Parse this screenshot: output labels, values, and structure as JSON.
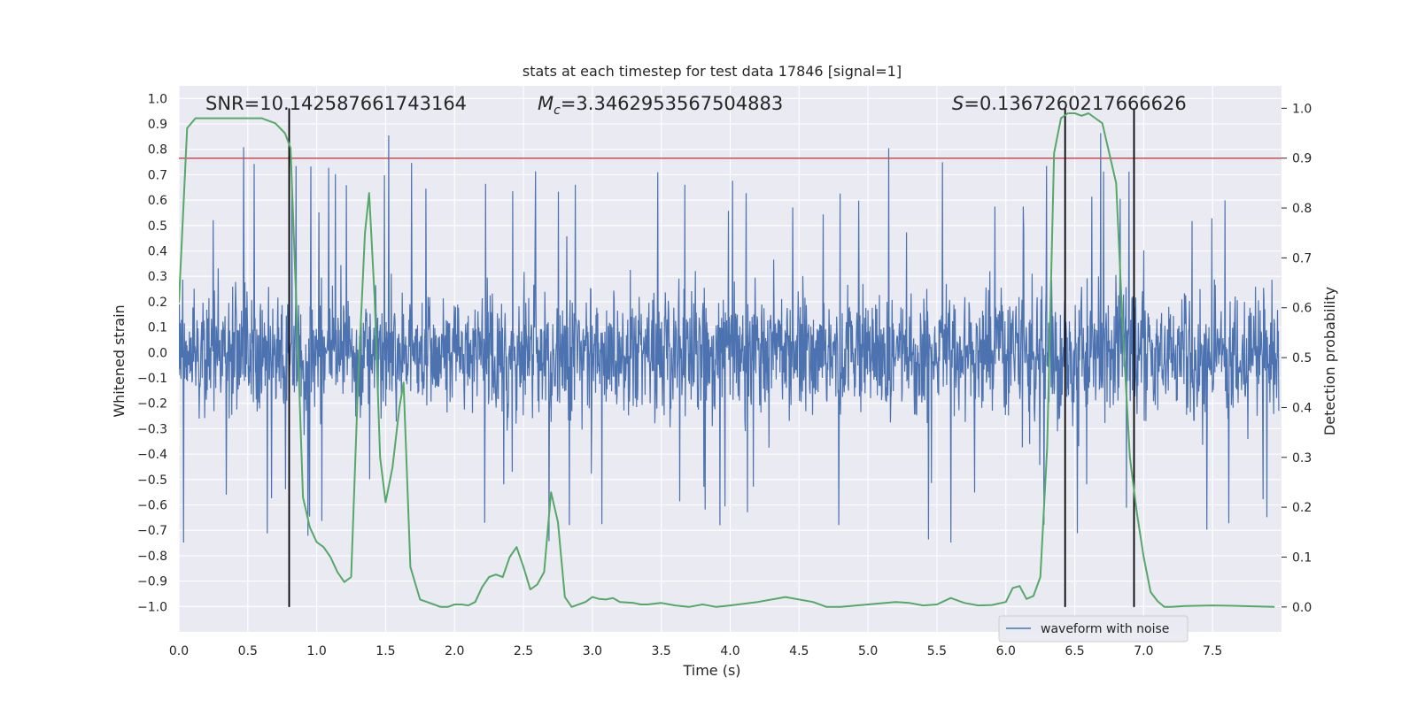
{
  "chart_data": {
    "type": "line",
    "title": "stats at each timestep for test data 17846 [signal=1]",
    "xlabel": "Time (s)",
    "ylabel_left": "Whitened strain",
    "ylabel_right": "Detection probability",
    "xlim": [
      0.0,
      8.0
    ],
    "ylim_left": [
      -1.1,
      1.05
    ],
    "ylim_right": [
      -0.05,
      1.045
    ],
    "x_ticks": [
      "0.0",
      "0.5",
      "1.0",
      "1.5",
      "2.0",
      "2.5",
      "3.0",
      "3.5",
      "4.0",
      "4.5",
      "5.0",
      "5.5",
      "6.0",
      "6.5",
      "7.0",
      "7.5"
    ],
    "y_ticks_left": [
      "1.0",
      "0.9",
      "0.8",
      "0.7",
      "0.6",
      "0.5",
      "0.4",
      "0.3",
      "0.2",
      "0.1",
      "0.0",
      "-0.1",
      "-0.2",
      "-0.3",
      "-0.4",
      "-0.5",
      "-0.6",
      "-0.7",
      "-0.8",
      "-0.9",
      "-1.0"
    ],
    "y_ticks_right": [
      "1.0",
      "0.9",
      "0.8",
      "0.7",
      "0.6",
      "0.5",
      "0.4",
      "0.3",
      "0.2",
      "0.1",
      "0.0"
    ],
    "grid": true,
    "legend_position": "bottom-right",
    "annotations": {
      "snr": "SNR=10.142587661743164",
      "mc_symbol": "M",
      "mc_sub": "c",
      "mc_value": "=3.3462953567504883",
      "s_symbol": "S",
      "s_value": "=0.1367260217666626"
    },
    "threshold": 0.9,
    "vlines": [
      0.8,
      6.43,
      6.93
    ],
    "colors": {
      "waveform": "#4c72b0",
      "probability": "#55a868",
      "threshold": "#c44e52",
      "vline": "#000000",
      "background": "#eaeaf2"
    },
    "series": [
      {
        "name": "waveform with noise",
        "description_of_noise": "dense whitened strain noise, envelope about ±0.4 with spikes to ±0.9"
      },
      {
        "name": "",
        "x": [
          0.0,
          0.06,
          0.12,
          0.2,
          0.3,
          0.4,
          0.5,
          0.6,
          0.7,
          0.77,
          0.81,
          0.86,
          0.9,
          0.95,
          1.0,
          1.05,
          1.1,
          1.15,
          1.2,
          1.25,
          1.3,
          1.35,
          1.38,
          1.42,
          1.46,
          1.5,
          1.55,
          1.6,
          1.63,
          1.68,
          1.75,
          1.8,
          1.85,
          1.9,
          1.95,
          2.0,
          2.05,
          2.1,
          2.15,
          2.2,
          2.25,
          2.3,
          2.35,
          2.4,
          2.45,
          2.5,
          2.55,
          2.6,
          2.65,
          2.7,
          2.75,
          2.8,
          2.85,
          2.9,
          2.95,
          3.0,
          3.05,
          3.1,
          3.15,
          3.2,
          3.3,
          3.35,
          3.4,
          3.5,
          3.6,
          3.7,
          3.8,
          3.9,
          4.0,
          4.2,
          4.4,
          4.6,
          4.7,
          4.8,
          5.0,
          5.2,
          5.3,
          5.4,
          5.5,
          5.6,
          5.7,
          5.8,
          5.9,
          6.0,
          6.05,
          6.1,
          6.15,
          6.2,
          6.25,
          6.3,
          6.35,
          6.4,
          6.45,
          6.5,
          6.55,
          6.6,
          6.7,
          6.8,
          6.85,
          6.9,
          6.95,
          7.0,
          7.05,
          7.1,
          7.15,
          7.2,
          7.3,
          7.5,
          7.7,
          7.95
        ],
        "values": [
          0.61,
          0.96,
          0.98,
          0.98,
          0.98,
          0.98,
          0.98,
          0.98,
          0.97,
          0.95,
          0.92,
          0.55,
          0.22,
          0.16,
          0.13,
          0.12,
          0.1,
          0.07,
          0.05,
          0.06,
          0.45,
          0.75,
          0.83,
          0.62,
          0.3,
          0.21,
          0.28,
          0.4,
          0.45,
          0.08,
          0.015,
          0.01,
          0.005,
          0.0,
          0.0,
          0.005,
          0.005,
          0.003,
          0.01,
          0.04,
          0.06,
          0.065,
          0.06,
          0.1,
          0.12,
          0.08,
          0.035,
          0.045,
          0.07,
          0.23,
          0.17,
          0.02,
          0.0,
          0.005,
          0.01,
          0.02,
          0.016,
          0.015,
          0.018,
          0.01,
          0.008,
          0.005,
          0.005,
          0.008,
          0.003,
          0.0,
          0.005,
          0.0,
          0.003,
          0.01,
          0.02,
          0.01,
          0.0,
          0.0,
          0.005,
          0.01,
          0.008,
          0.003,
          0.005,
          0.018,
          0.008,
          0.003,
          0.004,
          0.01,
          0.038,
          0.042,
          0.016,
          0.022,
          0.06,
          0.32,
          0.91,
          0.98,
          0.99,
          0.99,
          0.985,
          0.99,
          0.97,
          0.85,
          0.55,
          0.3,
          0.19,
          0.1,
          0.03,
          0.012,
          0.0,
          0.0,
          0.002,
          0.003,
          0.002,
          0.0
        ]
      }
    ]
  }
}
